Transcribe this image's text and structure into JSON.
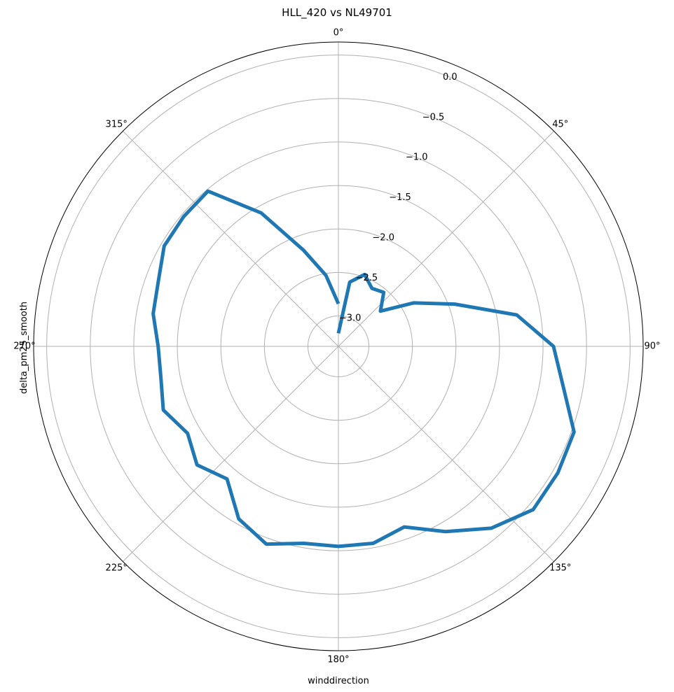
{
  "chart_data": {
    "type": "line",
    "projection": "polar",
    "theta_zero": "N",
    "theta_direction": "clockwise",
    "title": "HLL_420 vs NL49701",
    "xlabel": "winddirection",
    "ylabel": "delta_pm25_smooth",
    "theta_tick_labels": [
      "0°",
      "45°",
      "90°",
      "135°",
      "180°",
      "225°",
      "270°",
      "315°"
    ],
    "theta_ticks": [
      0,
      45,
      90,
      135,
      180,
      225,
      270,
      315
    ],
    "r_ticks": [
      -3.0,
      -2.5,
      -2.0,
      -1.5,
      -1.0,
      -0.5,
      0.0
    ],
    "r_tick_labels": [
      "−3.0",
      "−2.5",
      "−2.0",
      "−1.5",
      "−1.0",
      "−0.5",
      "0.0"
    ],
    "r_label_angle": 22.5,
    "rlim": [
      -3.35,
      0.15
    ],
    "grid": true,
    "series": [
      {
        "color": "#1f77b4",
        "theta": [
          0,
          10,
          20,
          30,
          40,
          50,
          60,
          70,
          80,
          90,
          100,
          110,
          120,
          130,
          140,
          150,
          160,
          170,
          180,
          190,
          200,
          210,
          220,
          230,
          240,
          250,
          260,
          270,
          280,
          290,
          300,
          310,
          320,
          330,
          340,
          350,
          360
        ],
        "r": [
          -3.2,
          -2.6,
          -2.47,
          -2.58,
          -2.54,
          -2.72,
          -2.35,
          -1.93,
          -1.27,
          -0.88,
          -0.73,
          -0.47,
          -0.44,
          -0.43,
          -0.62,
          -0.89,
          -1.14,
          -1.05,
          -1.05,
          -1.05,
          -0.93,
          -1.06,
          -1.36,
          -1.23,
          -1.35,
          -1.21,
          -1.28,
          -1.28,
          -1.19,
          -1.15,
          -1.04,
          -1.03,
          -1.02,
          -1.58,
          -2.17,
          -2.52,
          -2.86
        ]
      }
    ]
  }
}
